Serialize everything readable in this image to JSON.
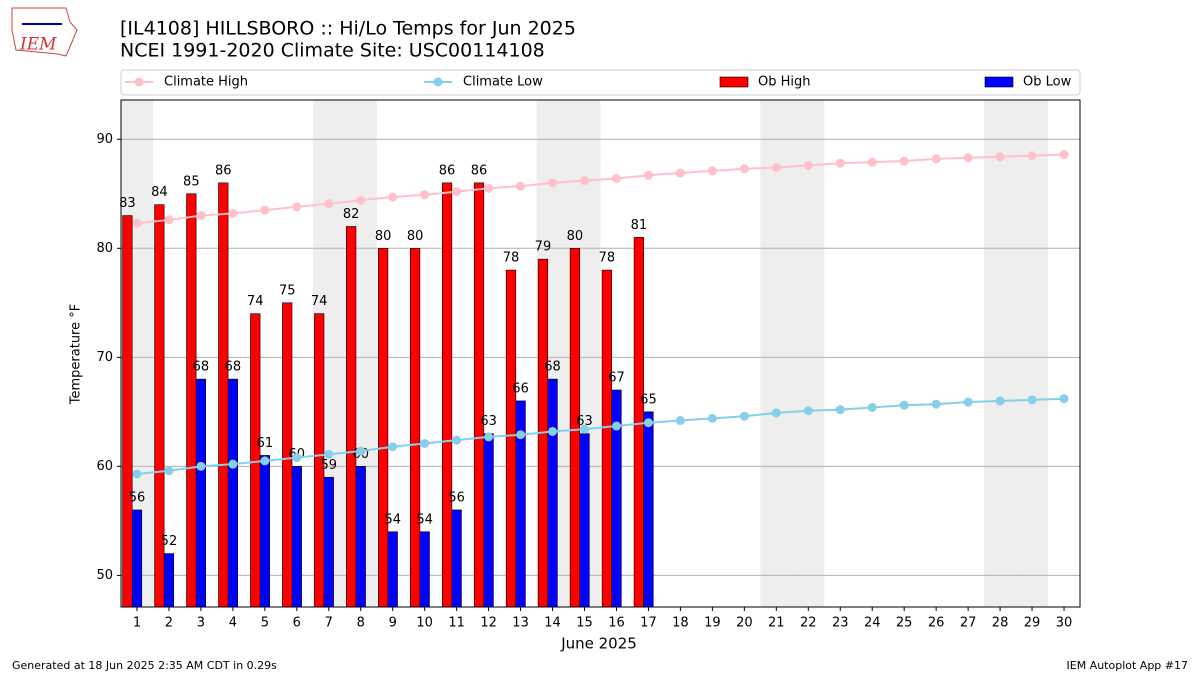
{
  "logo_text": "IEM",
  "chart_data": {
    "type": "bar",
    "title": "[IL4108] HILLSBORO :: Hi/Lo Temps for Jun 2025",
    "subtitle": "NCEI 1991-2020 Climate Site: USC00114108",
    "xlabel": "June 2025",
    "ylabel": "Temperature °F",
    "footer_left": "Generated at 18 Jun 2025 2:35 AM CDT in 0.29s",
    "footer_right": "IEM Autoplot App #17",
    "categories": [
      "1",
      "2",
      "3",
      "4",
      "5",
      "6",
      "7",
      "8",
      "9",
      "10",
      "11",
      "12",
      "13",
      "14",
      "15",
      "16",
      "17",
      "18",
      "19",
      "20",
      "21",
      "22",
      "23",
      "24",
      "25",
      "26",
      "27",
      "28",
      "29",
      "30"
    ],
    "shaded_days": [
      1,
      7,
      8,
      14,
      15,
      21,
      22,
      28,
      29
    ],
    "series": [
      {
        "name": "Climate High",
        "kind": "line",
        "color": "#ffc0cb",
        "values": [
          82.3,
          82.6,
          83.0,
          83.2,
          83.5,
          83.8,
          84.1,
          84.4,
          84.7,
          84.9,
          85.2,
          85.5,
          85.7,
          86.0,
          86.2,
          86.4,
          86.7,
          86.9,
          87.1,
          87.3,
          87.4,
          87.6,
          87.8,
          87.9,
          88.0,
          88.2,
          88.3,
          88.4,
          88.5,
          88.6
        ]
      },
      {
        "name": "Climate Low",
        "kind": "line",
        "color": "#87ceeb",
        "values": [
          59.3,
          59.6,
          60.0,
          60.2,
          60.5,
          60.8,
          61.1,
          61.4,
          61.8,
          62.1,
          62.4,
          62.7,
          62.9,
          63.2,
          63.4,
          63.7,
          64.0,
          64.2,
          64.4,
          64.6,
          64.9,
          65.1,
          65.2,
          65.4,
          65.6,
          65.7,
          65.9,
          66.0,
          66.1,
          66.2
        ]
      },
      {
        "name": "Ob High",
        "kind": "bar",
        "color": "#ff0000",
        "values": [
          83,
          84,
          85,
          86,
          74,
          75,
          74,
          82,
          80,
          80,
          86,
          86,
          78,
          79,
          80,
          78,
          81,
          null,
          null,
          null,
          null,
          null,
          null,
          null,
          null,
          null,
          null,
          null,
          null,
          null
        ]
      },
      {
        "name": "Ob Low",
        "kind": "bar",
        "color": "#0000ff",
        "values": [
          56,
          52,
          68,
          68,
          61,
          60,
          59,
          60,
          54,
          54,
          56,
          63,
          66,
          68,
          63,
          67,
          65,
          null,
          null,
          null,
          null,
          null,
          null,
          null,
          null,
          null,
          null,
          null,
          null,
          null
        ]
      }
    ],
    "ylim": [
      47.1,
      93.6
    ],
    "yticks": [
      50,
      60,
      70,
      80,
      90
    ],
    "grid": true
  }
}
